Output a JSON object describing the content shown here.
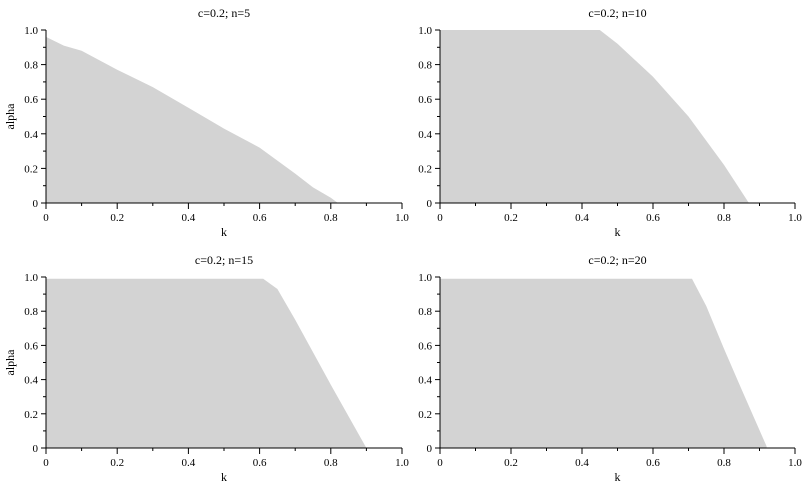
{
  "chart_data": [
    {
      "type": "area",
      "title": "c=0.2; n=5",
      "xlabel": "k",
      "ylabel": "alpha",
      "xlim": [
        0,
        1
      ],
      "ylim": [
        0,
        1
      ],
      "xticks": [
        "0",
        "0.2",
        "0.4",
        "0.6",
        "0.8",
        "1.0"
      ],
      "yticks": [
        "0",
        "0.2",
        "0.4",
        "0.6",
        "0.8",
        "1.0"
      ],
      "fill_color": "#d3d3d3",
      "boundary": {
        "x": [
          0,
          0.05,
          0.1,
          0.2,
          0.3,
          0.4,
          0.5,
          0.6,
          0.7,
          0.75,
          0.8,
          0.82
        ],
        "y": [
          0.96,
          0.91,
          0.88,
          0.77,
          0.67,
          0.55,
          0.43,
          0.32,
          0.17,
          0.09,
          0.03,
          0
        ]
      }
    },
    {
      "type": "area",
      "title": "c=0.2; n=10",
      "xlabel": "k",
      "ylabel": "",
      "xlim": [
        0,
        1
      ],
      "ylim": [
        0,
        1
      ],
      "xticks": [
        "0",
        "0.2",
        "0.4",
        "0.6",
        "0.8",
        "1.0"
      ],
      "yticks": [
        "0",
        "0.2",
        "0.4",
        "0.6",
        "0.8",
        "1.0"
      ],
      "fill_color": "#d3d3d3",
      "boundary": {
        "x": [
          0,
          0.45,
          0.5,
          0.6,
          0.7,
          0.8,
          0.87
        ],
        "y": [
          1.0,
          1.0,
          0.92,
          0.73,
          0.5,
          0.22,
          0
        ]
      }
    },
    {
      "type": "area",
      "title": "c=0.2; n=15",
      "xlabel": "k",
      "ylabel": "alpha",
      "xlim": [
        0,
        1
      ],
      "ylim": [
        0,
        1
      ],
      "xticks": [
        "0",
        "0.2",
        "0.4",
        "0.6",
        "0.8",
        "1.0"
      ],
      "yticks": [
        "0",
        "0.2",
        "0.4",
        "0.6",
        "0.8",
        "1.0"
      ],
      "fill_color": "#d3d3d3",
      "boundary": {
        "x": [
          0,
          0.61,
          0.65,
          0.7,
          0.8,
          0.9
        ],
        "y": [
          0.99,
          0.99,
          0.93,
          0.75,
          0.37,
          0
        ]
      }
    },
    {
      "type": "area",
      "title": "c=0.2; n=20",
      "xlabel": "k",
      "ylabel": "",
      "xlim": [
        0,
        1
      ],
      "ylim": [
        0,
        1
      ],
      "xticks": [
        "0",
        "0.2",
        "0.4",
        "0.6",
        "0.8",
        "1.0"
      ],
      "yticks": [
        "0",
        "0.2",
        "0.4",
        "0.6",
        "0.8",
        "1.0"
      ],
      "fill_color": "#d3d3d3",
      "boundary": {
        "x": [
          0,
          0.71,
          0.75,
          0.8,
          0.85,
          0.92
        ],
        "y": [
          0.99,
          0.99,
          0.83,
          0.58,
          0.34,
          0.01
        ]
      }
    }
  ]
}
